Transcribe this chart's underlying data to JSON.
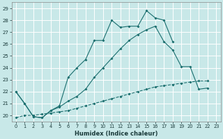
{
  "xlabel": "Humidex (Indice chaleur)",
  "bg_color": "#c8e8e8",
  "line_color": "#1a6e6e",
  "xlim": [
    -0.5,
    23.5
  ],
  "ylim": [
    19.5,
    29.5
  ],
  "xticks": [
    0,
    1,
    2,
    3,
    4,
    5,
    6,
    7,
    8,
    9,
    10,
    11,
    12,
    13,
    14,
    15,
    16,
    17,
    18,
    19,
    20,
    21,
    22,
    23
  ],
  "yticks": [
    20,
    21,
    22,
    23,
    24,
    25,
    26,
    27,
    28,
    29
  ],
  "line_top_x": [
    0,
    1,
    2,
    3,
    4,
    5,
    6,
    7,
    8,
    9,
    10,
    11,
    12,
    13,
    14,
    15,
    16,
    17,
    18
  ],
  "line_top_y": [
    22.0,
    21.0,
    19.9,
    19.8,
    20.4,
    20.8,
    23.2,
    24.0,
    24.7,
    26.3,
    26.3,
    28.0,
    27.4,
    27.5,
    27.5,
    28.8,
    28.2,
    28.0,
    26.2
  ],
  "line_mid_x": [
    0,
    1,
    2,
    3,
    4,
    5,
    6,
    7,
    8,
    9,
    10,
    11,
    12,
    13,
    14,
    15,
    16,
    17,
    18,
    19,
    20,
    21,
    22
  ],
  "line_mid_y": [
    22.0,
    21.0,
    19.9,
    19.8,
    20.4,
    20.7,
    21.2,
    21.6,
    22.2,
    23.2,
    24.0,
    24.8,
    25.6,
    26.3,
    26.8,
    27.2,
    27.5,
    26.2,
    25.5,
    24.1,
    24.1,
    22.2,
    22.3
  ],
  "line_bot_x": [
    0,
    1,
    2,
    3,
    4,
    5,
    6,
    7,
    8,
    9,
    10,
    11,
    12,
    13,
    14,
    15,
    16,
    17,
    18,
    19,
    20,
    21,
    22
  ],
  "line_bot_y": [
    19.8,
    20.0,
    20.0,
    20.1,
    20.2,
    20.3,
    20.4,
    20.6,
    20.8,
    21.0,
    21.2,
    21.4,
    21.6,
    21.8,
    22.0,
    22.2,
    22.4,
    22.5,
    22.6,
    22.7,
    22.8,
    22.9,
    22.9
  ]
}
